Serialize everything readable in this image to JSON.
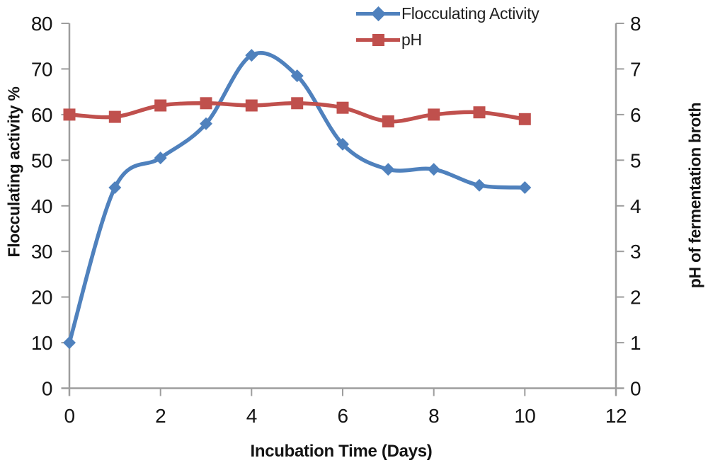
{
  "chart_data": {
    "type": "line",
    "title": "",
    "x": [
      0,
      1,
      2,
      3,
      4,
      5,
      6,
      7,
      8,
      9,
      10
    ],
    "series": [
      {
        "name": "Flocculating Activity",
        "axis": "left",
        "color": "#4f81bd",
        "marker": "diamond",
        "values": [
          10,
          44,
          50.5,
          58,
          73,
          68.5,
          53.5,
          48,
          48,
          44.5,
          44
        ]
      },
      {
        "name": "pH",
        "axis": "right",
        "color": "#c0504d",
        "marker": "square",
        "values": [
          6.0,
          5.95,
          6.2,
          6.25,
          6.2,
          6.25,
          6.15,
          5.85,
          6.0,
          6.05,
          5.9
        ]
      }
    ],
    "xlabel": "Incubation Time (Days)",
    "ylabel_left": "Flocculating activity %",
    "ylabel_right": "pH of fermentation broth",
    "xlim": [
      0,
      12
    ],
    "xticks": [
      0,
      2,
      4,
      6,
      8,
      10,
      12
    ],
    "ylim_left": [
      0,
      80
    ],
    "yticks_left": [
      0,
      10,
      20,
      30,
      40,
      50,
      60,
      70,
      80
    ],
    "ylim_right": [
      0,
      8
    ],
    "yticks_right": [
      0,
      1,
      2,
      3,
      4,
      5,
      6,
      7,
      8
    ],
    "grid": false,
    "smoothed": true,
    "legend_position": "top-center"
  },
  "styles": {
    "axis_color": "#9d9d9d",
    "tick_label_color": "#141414",
    "background": "#ffffff"
  }
}
